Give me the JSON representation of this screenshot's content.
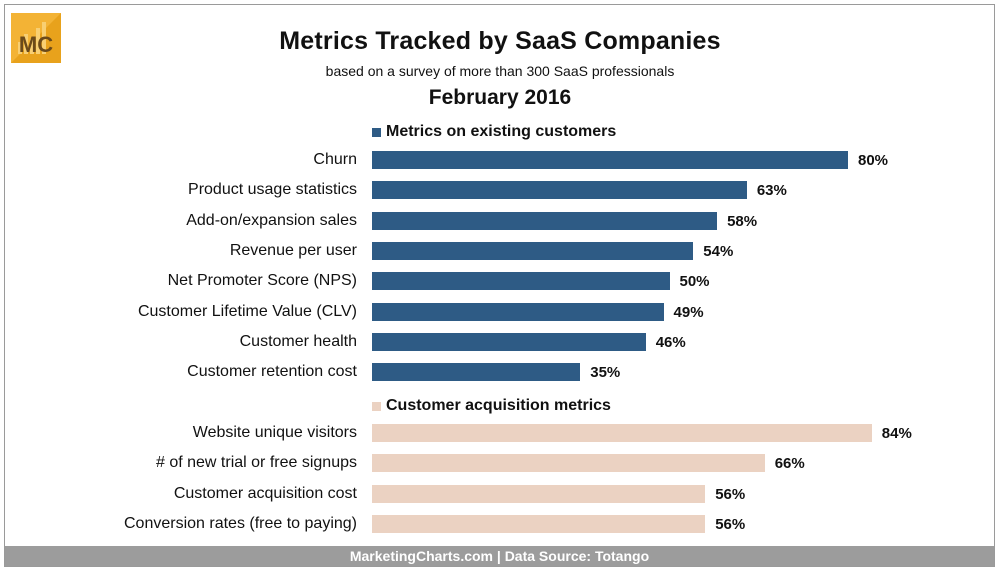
{
  "logo": {
    "text": "MC",
    "icon": "marketingcharts-logo-icon"
  },
  "chart_data": {
    "type": "bar",
    "orientation": "horizontal",
    "title": "Metrics Tracked by SaaS Companies",
    "subtitle": "based on a survey of more than 300 SaaS professionals",
    "date": "February 2016",
    "footer": "MarketingCharts.com | Data Source: Totango",
    "value_format": "%",
    "xlim": [
      0,
      100
    ],
    "grid": false,
    "groups": [
      {
        "name": "Metrics on existing customers",
        "color": "#2e5b85",
        "categories": [
          "Churn",
          "Product usage statistics",
          "Add-on/expansion sales",
          "Revenue per user",
          "Net Promoter Score (NPS)",
          "Customer Lifetime Value (CLV)",
          "Customer health",
          "Customer retention cost"
        ],
        "values": [
          80,
          63,
          58,
          54,
          50,
          49,
          46,
          35
        ],
        "labels": [
          "80%",
          "63%",
          "58%",
          "54%",
          "50%",
          "49%",
          "46%",
          "35%"
        ]
      },
      {
        "name": "Customer acquisition metrics",
        "color": "#ebd2c2",
        "categories": [
          "Website unique visitors",
          "# of new trial or free signups",
          "Customer acquisition cost",
          "Conversion rates (free to paying)"
        ],
        "values": [
          84,
          66,
          56,
          56
        ],
        "labels": [
          "84%",
          "66%",
          "56%",
          "56%"
        ]
      }
    ]
  }
}
